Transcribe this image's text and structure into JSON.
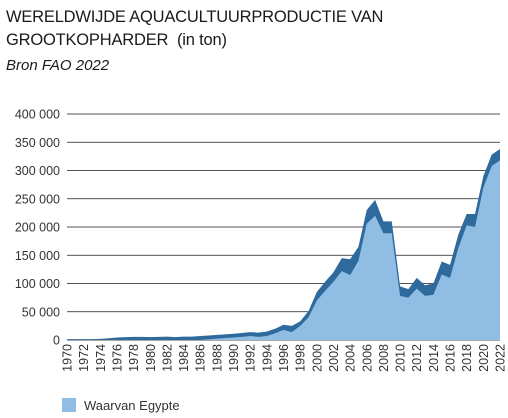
{
  "title": {
    "main": "WERELDWIJDE AQUACULTUURPRODUCTIE VAN GROOTKOPHARDER",
    "unit": "(in ton)"
  },
  "source": "Bron FAO 2022",
  "legend": {
    "label": "Waarvan Egypte",
    "swatch_icon": "square-swatch-icon"
  },
  "colors": {
    "total_area": "#2f6a9c",
    "egypt_area": "#8fbde3",
    "gridline": "#1a1a1a",
    "tick_label": "#333333"
  },
  "chart_data": {
    "type": "area",
    "x": [
      1970,
      1971,
      1972,
      1973,
      1974,
      1975,
      1976,
      1977,
      1978,
      1979,
      1980,
      1981,
      1982,
      1983,
      1984,
      1985,
      1986,
      1987,
      1988,
      1989,
      1990,
      1991,
      1992,
      1993,
      1994,
      1995,
      1996,
      1997,
      1998,
      1999,
      2000,
      2001,
      2002,
      2003,
      2004,
      2005,
      2006,
      2007,
      2008,
      2009,
      2010,
      2011,
      2012,
      2013,
      2014,
      2015,
      2016,
      2017,
      2018,
      2019,
      2020,
      2021,
      2022
    ],
    "x_tick_labels": [
      "1970",
      "1972",
      "1974",
      "1976",
      "1978",
      "1980",
      "1982",
      "1984",
      "1986",
      "1988",
      "1990",
      "1992",
      "1994",
      "1996",
      "1998",
      "2000",
      "2002",
      "2004",
      "2006",
      "2008",
      "2010",
      "2012",
      "2014",
      "2016",
      "2018",
      "2020",
      "2022"
    ],
    "ylim": [
      0,
      400000
    ],
    "y_ticks": [
      0,
      50000,
      100000,
      150000,
      200000,
      250000,
      300000,
      350000,
      400000
    ],
    "y_tick_labels": [
      "0",
      "50 000",
      "100 000",
      "150 000",
      "200 000",
      "250 000",
      "300 000",
      "350 000",
      "400 000"
    ],
    "grid": true,
    "legend_position": "bottom-left",
    "series": [
      {
        "name": "",
        "role": "total",
        "values": [
          1500,
          1500,
          1500,
          1500,
          2000,
          3000,
          4500,
          5000,
          5500,
          5500,
          5000,
          5500,
          6000,
          5000,
          6000,
          6000,
          7000,
          8000,
          9000,
          10000,
          11000,
          12500,
          14000,
          13000,
          15000,
          20000,
          27000,
          25000,
          33000,
          51000,
          85000,
          103000,
          120000,
          145000,
          143000,
          165000,
          230000,
          248000,
          210000,
          210000,
          95000,
          90000,
          110000,
          97000,
          100000,
          139000,
          133000,
          187000,
          223000,
          223000,
          290000,
          328000,
          338000
        ]
      },
      {
        "name": "Waarvan Egypte",
        "role": "egypt",
        "values": [
          0,
          0,
          0,
          0,
          0,
          0,
          0,
          0,
          0,
          0,
          0,
          0,
          0,
          0,
          0,
          0,
          0,
          1000,
          2500,
          3500,
          4500,
          5500,
          7000,
          5500,
          7000,
          12000,
          18000,
          14000,
          25000,
          40000,
          70000,
          87000,
          103000,
          122000,
          115000,
          140000,
          206000,
          220000,
          189000,
          189000,
          78000,
          75000,
          91000,
          78000,
          80000,
          116000,
          110000,
          163000,
          203000,
          200000,
          270000,
          308000,
          318000
        ]
      }
    ]
  }
}
